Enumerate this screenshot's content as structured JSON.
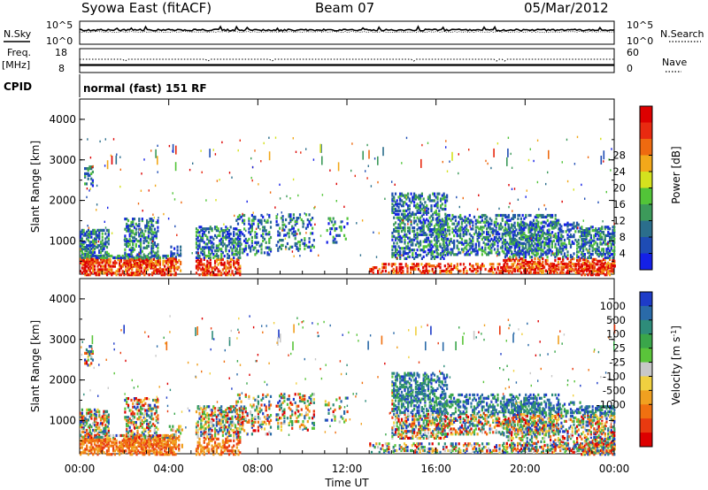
{
  "header": {
    "title": "Syowa East (fitACF)",
    "beam": "Beam 07",
    "date": "05/Mar/2012"
  },
  "panel_labels": {
    "nsky": "N.Sky",
    "nsearch": "N.Search",
    "freq_top": "Freq.",
    "freq_unit": "[MHz]",
    "cpid": "CPID",
    "nave": "Nave",
    "mode": "normal (fast) 151 RF"
  },
  "noise_axis": {
    "left_ticks": [
      "10^5",
      "10^0"
    ],
    "right_ticks": [
      "10^5",
      "10^0"
    ]
  },
  "freq_axis": {
    "left_ticks": [
      "18",
      "8"
    ],
    "right_ticks": [
      "60",
      "0"
    ]
  },
  "chart_data": [
    {
      "type": "heatmap",
      "name": "power",
      "ylabel": "Slant Range [km]",
      "xlabel": "",
      "ylim": [
        180,
        4500
      ],
      "y_ticks": [
        "1000",
        "2000",
        "3000",
        "4000"
      ],
      "xlim": [
        0,
        24
      ],
      "colorbar": {
        "label": "Power [dB]",
        "ticks": [
          "4",
          "8",
          "12",
          "16",
          "20",
          "24",
          "28"
        ],
        "colors": [
          "#1420e6",
          "#1e4cb4",
          "#2b6e8c",
          "#3c9a5a",
          "#52c438",
          "#d4e21e",
          "#f2a81a",
          "#ee6a10",
          "#e82a10",
          "#dd0000"
        ]
      }
    },
    {
      "type": "heatmap",
      "name": "velocity",
      "ylabel": "Slant Range [km]",
      "xlabel": "Time UT",
      "ylim": [
        180,
        4500
      ],
      "y_ticks": [
        "1000",
        "2000",
        "3000",
        "4000"
      ],
      "xlim": [
        0,
        24
      ],
      "x_ticks": [
        "00:00",
        "04:00",
        "08:00",
        "12:00",
        "16:00",
        "20:00",
        "00:00"
      ],
      "colorbar": {
        "label": "Velocity [m s^-1]",
        "ticks": [
          "1000",
          "500",
          "100",
          "25",
          "-25",
          "-100",
          "-500",
          "-1000"
        ],
        "colors": [
          "#1e3cc8",
          "#2a6aa8",
          "#2e8c7a",
          "#3aa64a",
          "#5ac43a",
          "#c8c8c8",
          "#f0d040",
          "#f0a020",
          "#f07010",
          "#e83a10",
          "#dd0000"
        ]
      }
    }
  ]
}
